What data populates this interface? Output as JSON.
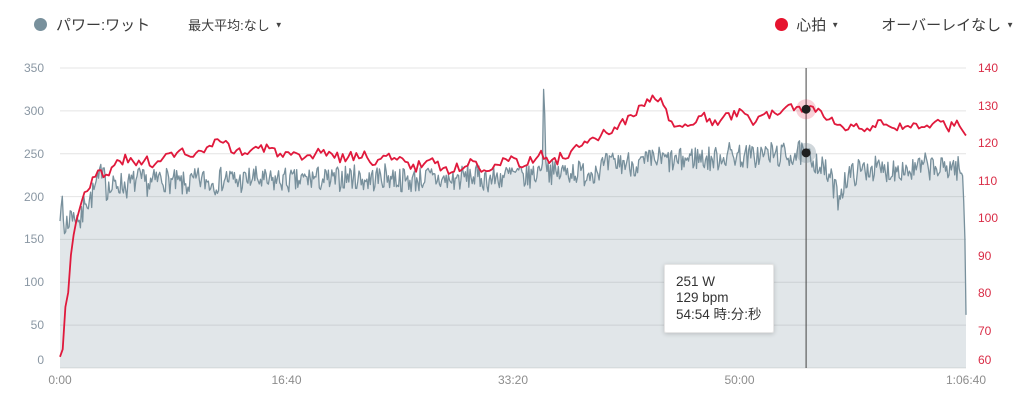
{
  "header": {
    "power_series_label": "パワー:ワット",
    "max_avg_label": "最大平均:なし",
    "hr_series_label": "心拍",
    "overlay_label": "オーバーレイなし"
  },
  "tooltip": {
    "power": "251 W",
    "heart_rate": "129 bpm",
    "time": "54:54 時:分:秒"
  },
  "colors": {
    "power": "#78909c",
    "power_fill": "rgba(119,141,153,0.22)",
    "heart_rate": "#e0193c",
    "hr_dot": "#e6132e",
    "left_axis_label": "#8a97a3",
    "right_axis_label": "#d92c46",
    "x_axis_label": "#8d8d8d",
    "grid": "#e4e4e4",
    "cursor": "#424242",
    "marker": "#1f1f1f",
    "hr_halo": "rgba(224,25,60,0.20)",
    "power_halo": "rgba(119,141,153,0.35)"
  },
  "chart_data": {
    "type": "line",
    "title": "",
    "x_unit": "elapsed time h:mm:ss",
    "x_range": [
      0,
      4000
    ],
    "x_ticks": [
      {
        "t": 0,
        "label": "0:00"
      },
      {
        "t": 1000,
        "label": "16:40"
      },
      {
        "t": 2000,
        "label": "33:20"
      },
      {
        "t": 3000,
        "label": "50:00"
      },
      {
        "t": 4000,
        "label": "1:06:40"
      }
    ],
    "grid": "horizontal",
    "legend_position": "top",
    "left_axis": {
      "name": "パワー (ワット)",
      "min": 0,
      "max": 350,
      "ticks": [
        350,
        300,
        250,
        200,
        150,
        100,
        50,
        0
      ]
    },
    "right_axis": {
      "name": "心拍 (bpm)",
      "min": 60,
      "max": 140,
      "ticks": [
        140,
        130,
        120,
        110,
        100,
        90,
        80,
        70,
        60
      ]
    },
    "series": [
      {
        "id": "power",
        "name": "パワー:ワット",
        "unit": "W",
        "axis": "left",
        "color": "#78909c",
        "fill": "rgba(119,141,153,0.22)",
        "stroke_width": 1.3,
        "sample_step": 5,
        "noise_amp": 15,
        "seed": 7,
        "pins": [
          2135,
          3294,
          4000
        ],
        "anchors": [
          [
            0,
            186
          ],
          [
            6,
            204
          ],
          [
            14,
            168
          ],
          [
            22,
            152
          ],
          [
            30,
            178
          ],
          [
            40,
            163
          ],
          [
            50,
            190
          ],
          [
            62,
            170
          ],
          [
            75,
            182
          ],
          [
            88,
            168
          ],
          [
            100,
            178
          ],
          [
            112,
            205
          ],
          [
            125,
            192
          ],
          [
            140,
            200
          ],
          [
            158,
            212
          ],
          [
            175,
            220
          ],
          [
            192,
            246
          ],
          [
            205,
            210
          ],
          [
            225,
            208
          ],
          [
            255,
            216
          ],
          [
            295,
            212
          ],
          [
            345,
            220
          ],
          [
            395,
            214
          ],
          [
            445,
            222
          ],
          [
            495,
            217
          ],
          [
            555,
            213
          ],
          [
            615,
            220
          ],
          [
            675,
            216
          ],
          [
            735,
            222
          ],
          [
            795,
            217
          ],
          [
            855,
            222
          ],
          [
            915,
            216
          ],
          [
            975,
            220
          ],
          [
            1045,
            217
          ],
          [
            1115,
            222
          ],
          [
            1195,
            218
          ],
          [
            1275,
            224
          ],
          [
            1355,
            219
          ],
          [
            1445,
            224
          ],
          [
            1535,
            218
          ],
          [
            1625,
            222
          ],
          [
            1715,
            218
          ],
          [
            1805,
            224
          ],
          [
            1900,
            220
          ],
          [
            2000,
            226
          ],
          [
            2060,
            222
          ],
          [
            2110,
            228
          ],
          [
            2130,
            240
          ],
          [
            2135,
            325
          ],
          [
            2140,
            300
          ],
          [
            2146,
            236
          ],
          [
            2180,
            226
          ],
          [
            2250,
            230
          ],
          [
            2320,
            227
          ],
          [
            2400,
            235
          ],
          [
            2480,
            240
          ],
          [
            2560,
            237
          ],
          [
            2640,
            244
          ],
          [
            2720,
            240
          ],
          [
            2800,
            246
          ],
          [
            2880,
            243
          ],
          [
            2960,
            250
          ],
          [
            3040,
            246
          ],
          [
            3120,
            250
          ],
          [
            3200,
            248
          ],
          [
            3294,
            251
          ],
          [
            3340,
            241
          ],
          [
            3400,
            222
          ],
          [
            3435,
            199
          ],
          [
            3470,
            221
          ],
          [
            3520,
            229
          ],
          [
            3580,
            234
          ],
          [
            3640,
            229
          ],
          [
            3700,
            234
          ],
          [
            3760,
            230
          ],
          [
            3820,
            236
          ],
          [
            3880,
            231
          ],
          [
            3940,
            236
          ],
          [
            3975,
            231
          ],
          [
            3988,
            215
          ],
          [
            3995,
            150
          ],
          [
            4000,
            62
          ]
        ]
      },
      {
        "id": "heart-rate",
        "name": "心拍",
        "unit": "bpm",
        "axis": "right",
        "color": "#e0193c",
        "fill": null,
        "stroke_width": 1.8,
        "sample_step": 12,
        "noise_amp": 1.4,
        "seed": 3,
        "pins": [
          0,
          3294,
          4000
        ],
        "anchors": [
          [
            0,
            63
          ],
          [
            10,
            64
          ],
          [
            18,
            71
          ],
          [
            28,
            80
          ],
          [
            40,
            82
          ],
          [
            52,
            93
          ],
          [
            68,
            98
          ],
          [
            88,
            104
          ],
          [
            110,
            107
          ],
          [
            140,
            110
          ],
          [
            170,
            112
          ],
          [
            205,
            111
          ],
          [
            240,
            114
          ],
          [
            285,
            116
          ],
          [
            330,
            114
          ],
          [
            380,
            116
          ],
          [
            430,
            114
          ],
          [
            480,
            117
          ],
          [
            530,
            118
          ],
          [
            585,
            116
          ],
          [
            640,
            118
          ],
          [
            695,
            120
          ],
          [
            750,
            119
          ],
          [
            810,
            117
          ],
          [
            870,
            119
          ],
          [
            935,
            118
          ],
          [
            1000,
            117
          ],
          [
            1080,
            115
          ],
          [
            1160,
            118
          ],
          [
            1240,
            116
          ],
          [
            1320,
            117
          ],
          [
            1400,
            115
          ],
          [
            1480,
            117
          ],
          [
            1560,
            113
          ],
          [
            1640,
            116
          ],
          [
            1720,
            112
          ],
          [
            1800,
            115
          ],
          [
            1880,
            113
          ],
          [
            1960,
            116
          ],
          [
            2040,
            114
          ],
          [
            2110,
            117
          ],
          [
            2180,
            115
          ],
          [
            2260,
            118
          ],
          [
            2340,
            120
          ],
          [
            2420,
            123
          ],
          [
            2500,
            126
          ],
          [
            2560,
            129
          ],
          [
            2620,
            132
          ],
          [
            2660,
            131
          ],
          [
            2700,
            125
          ],
          [
            2745,
            123
          ],
          [
            2790,
            126
          ],
          [
            2840,
            127
          ],
          [
            2890,
            125
          ],
          [
            2940,
            127
          ],
          [
            3000,
            128
          ],
          [
            3060,
            126
          ],
          [
            3120,
            128
          ],
          [
            3180,
            127
          ],
          [
            3240,
            130
          ],
          [
            3294,
            129
          ],
          [
            3350,
            129
          ],
          [
            3410,
            126
          ],
          [
            3460,
            124
          ],
          [
            3510,
            126
          ],
          [
            3560,
            123
          ],
          [
            3620,
            125
          ],
          [
            3680,
            123
          ],
          [
            3740,
            125
          ],
          [
            3800,
            124
          ],
          [
            3860,
            126
          ],
          [
            3920,
            124
          ],
          [
            3960,
            126
          ],
          [
            3985,
            123
          ],
          [
            4000,
            122
          ]
        ]
      }
    ],
    "cursor": {
      "t_seconds": 3294,
      "time_label": "54:54",
      "power_w": 251,
      "heart_rate_bpm": 129
    }
  }
}
